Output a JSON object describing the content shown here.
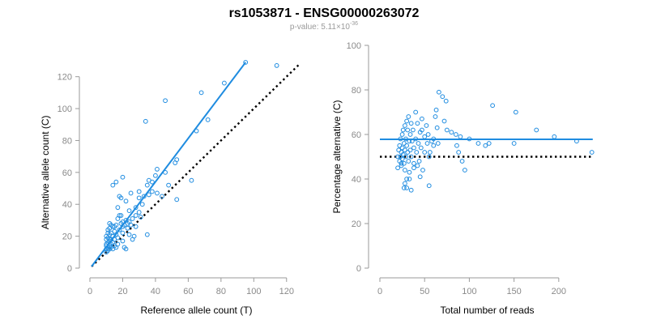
{
  "figure": {
    "title": "rs1053871 - ENSG00000263072",
    "subtitle_prefix": "p-value: 5.11×10",
    "subtitle_exponent": "-36"
  },
  "colors": {
    "series": "#1f8ce0",
    "null_line": "#000000",
    "axis": "#9a9a9a"
  },
  "chart_data": [
    {
      "type": "scatter",
      "title": "",
      "xlabel": "Reference allele count (T)",
      "ylabel": "Alternative allele count (C)",
      "xlim": [
        0,
        130
      ],
      "ylim": [
        0,
        130
      ],
      "xticks": [
        0,
        20,
        40,
        60,
        80,
        100,
        120
      ],
      "yticks": [
        0,
        20,
        40,
        60,
        80,
        100,
        120
      ],
      "grid": false,
      "fit_line": {
        "x": [
          1,
          95
        ],
        "y": [
          1,
          129
        ]
      },
      "reference_line": {
        "x": [
          1,
          128
        ],
        "y": [
          1,
          128
        ],
        "style": "dotted"
      },
      "points": [
        [
          10,
          10
        ],
        [
          10,
          12
        ],
        [
          10,
          14
        ],
        [
          10,
          15
        ],
        [
          10,
          18
        ],
        [
          10,
          20
        ],
        [
          11,
          11
        ],
        [
          11,
          13
        ],
        [
          11,
          16
        ],
        [
          11,
          19
        ],
        [
          11,
          22
        ],
        [
          11,
          24
        ],
        [
          12,
          12
        ],
        [
          12,
          14
        ],
        [
          12,
          17
        ],
        [
          12,
          21
        ],
        [
          12,
          25
        ],
        [
          12,
          28
        ],
        [
          13,
          13
        ],
        [
          13,
          15
        ],
        [
          13,
          18
        ],
        [
          13,
          22
        ],
        [
          14,
          12
        ],
        [
          14,
          16
        ],
        [
          14,
          20
        ],
        [
          14,
          26
        ],
        [
          15,
          14
        ],
        [
          15,
          18
        ],
        [
          15,
          23
        ],
        [
          16,
          13
        ],
        [
          16,
          21
        ],
        [
          16,
          27
        ],
        [
          17,
          15
        ],
        [
          17,
          19
        ],
        [
          17,
          31
        ],
        [
          18,
          24
        ],
        [
          18,
          33
        ],
        [
          19,
          28
        ],
        [
          19,
          44
        ],
        [
          20,
          17
        ],
        [
          20,
          22
        ],
        [
          20,
          29
        ],
        [
          21,
          13
        ],
        [
          21,
          27
        ],
        [
          22,
          12
        ],
        [
          22,
          30
        ],
        [
          23,
          25
        ],
        [
          24,
          21
        ],
        [
          24,
          29
        ],
        [
          25,
          27
        ],
        [
          26,
          18
        ],
        [
          27,
          20
        ],
        [
          28,
          26
        ],
        [
          30,
          35
        ],
        [
          31,
          32
        ],
        [
          32,
          40
        ],
        [
          33,
          45
        ],
        [
          35,
          52
        ],
        [
          36,
          55
        ],
        [
          38,
          48
        ],
        [
          40,
          58
        ],
        [
          41,
          62
        ],
        [
          44,
          45
        ],
        [
          46,
          60
        ],
        [
          48,
          52
        ],
        [
          52,
          66
        ],
        [
          53,
          43
        ],
        [
          62,
          55
        ],
        [
          65,
          86
        ],
        [
          68,
          110
        ],
        [
          72,
          93
        ],
        [
          82,
          116
        ],
        [
          95,
          129
        ],
        [
          114,
          127
        ],
        [
          34,
          92
        ],
        [
          46,
          105
        ],
        [
          53,
          68
        ],
        [
          35,
          21
        ],
        [
          28,
          38
        ],
        [
          22,
          42
        ],
        [
          25,
          47
        ],
        [
          18,
          45
        ],
        [
          14,
          52
        ],
        [
          16,
          54
        ],
        [
          20,
          57
        ],
        [
          30,
          48
        ],
        [
          28,
          33
        ],
        [
          24,
          36
        ],
        [
          19,
          33
        ],
        [
          17,
          38
        ],
        [
          12,
          18
        ],
        [
          13,
          27
        ],
        [
          15,
          26
        ],
        [
          20,
          26
        ],
        [
          23,
          28
        ],
        [
          26,
          31
        ],
        [
          30,
          44
        ],
        [
          38,
          54
        ],
        [
          41,
          47
        ],
        [
          36,
          46
        ]
      ]
    },
    {
      "type": "scatter",
      "title": "",
      "xlabel": "Total number of reads",
      "ylabel": "Percentage alternative (C)",
      "xlim": [
        0,
        240
      ],
      "ylim": [
        0,
        100
      ],
      "xticks": [
        0,
        50,
        100,
        150,
        200
      ],
      "yticks": [
        0,
        20,
        40,
        60,
        80,
        100
      ],
      "grid": false,
      "fit_line": {
        "x": [
          0,
          238
        ],
        "y": [
          57.8,
          57.8
        ]
      },
      "reference_line": {
        "x": [
          0,
          238
        ],
        "y": [
          50,
          50
        ],
        "style": "dotted"
      },
      "points": [
        [
          20,
          50
        ],
        [
          20,
          45
        ],
        [
          21,
          53
        ],
        [
          22,
          48
        ],
        [
          22,
          55
        ],
        [
          23,
          50
        ],
        [
          23,
          58
        ],
        [
          24,
          52
        ],
        [
          24,
          46
        ],
        [
          25,
          60
        ],
        [
          25,
          49
        ],
        [
          25,
          54
        ],
        [
          26,
          62
        ],
        [
          26,
          51
        ],
        [
          27,
          56
        ],
        [
          27,
          47
        ],
        [
          28,
          64
        ],
        [
          28,
          53
        ],
        [
          28,
          44
        ],
        [
          29,
          58
        ],
        [
          29,
          50
        ],
        [
          30,
          66
        ],
        [
          30,
          55
        ],
        [
          30,
          40
        ],
        [
          31,
          62
        ],
        [
          31,
          52
        ],
        [
          32,
          68
        ],
        [
          32,
          48
        ],
        [
          33,
          57
        ],
        [
          33,
          43
        ],
        [
          34,
          60
        ],
        [
          34,
          53
        ],
        [
          35,
          65
        ],
        [
          35,
          50
        ],
        [
          36,
          57
        ],
        [
          37,
          62
        ],
        [
          38,
          54
        ],
        [
          38,
          47
        ],
        [
          40,
          70
        ],
        [
          40,
          58
        ],
        [
          41,
          52
        ],
        [
          42,
          65
        ],
        [
          43,
          56
        ],
        [
          44,
          48
        ],
        [
          45,
          61
        ],
        [
          46,
          54
        ],
        [
          47,
          67
        ],
        [
          48,
          44
        ],
        [
          50,
          59
        ],
        [
          50,
          52
        ],
        [
          52,
          64
        ],
        [
          53,
          56
        ],
        [
          54,
          60
        ],
        [
          55,
          50
        ],
        [
          56,
          52
        ],
        [
          58,
          57
        ],
        [
          60,
          55
        ],
        [
          62,
          68
        ],
        [
          63,
          71
        ],
        [
          64,
          63
        ],
        [
          65,
          56
        ],
        [
          66,
          79
        ],
        [
          70,
          77
        ],
        [
          72,
          66
        ],
        [
          74,
          75
        ],
        [
          75,
          62
        ],
        [
          80,
          61
        ],
        [
          85,
          60
        ],
        [
          86,
          55
        ],
        [
          88,
          52
        ],
        [
          90,
          59
        ],
        [
          92,
          48
        ],
        [
          95,
          44
        ],
        [
          100,
          58
        ],
        [
          110,
          56
        ],
        [
          118,
          55
        ],
        [
          122,
          56
        ],
        [
          126,
          73
        ],
        [
          150,
          56
        ],
        [
          152,
          70
        ],
        [
          175,
          62
        ],
        [
          195,
          59
        ],
        [
          220,
          57
        ],
        [
          237,
          52
        ],
        [
          35,
          35
        ],
        [
          30,
          36
        ],
        [
          28,
          38
        ],
        [
          45,
          41
        ],
        [
          38,
          45
        ],
        [
          33,
          40
        ],
        [
          42,
          46
        ],
        [
          24,
          47
        ],
        [
          27,
          36
        ],
        [
          55,
          37
        ],
        [
          60,
          58
        ],
        [
          47,
          62
        ]
      ]
    }
  ]
}
